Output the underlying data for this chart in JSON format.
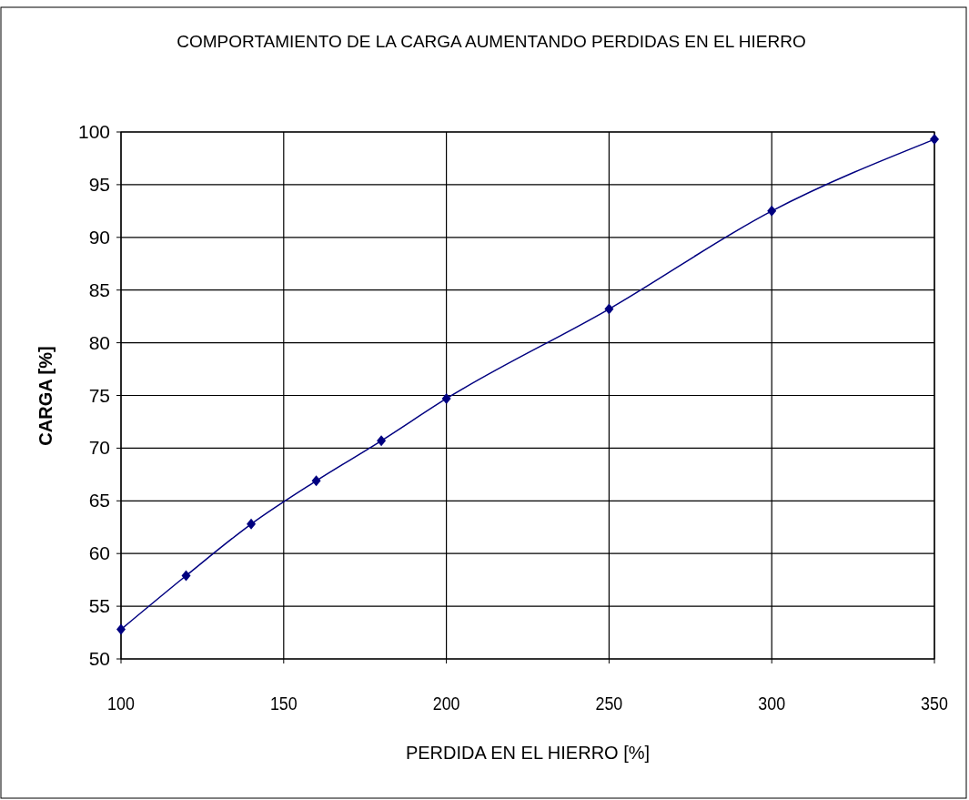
{
  "chart_data": {
    "type": "line",
    "title": "COMPORTAMIENTO DE LA CARGA AUMENTANDO PERDIDAS EN EL HIERRO",
    "xlabel": "PERDIDA EN EL HIERRO [%]",
    "ylabel": "CARGA [%]",
    "x": [
      100,
      120,
      140,
      160,
      180,
      200,
      250,
      300,
      350
    ],
    "series": [
      {
        "color": "#000080",
        "values": [
          52.8,
          57.9,
          62.8,
          66.9,
          70.7,
          74.7,
          83.2,
          92.5,
          99.3
        ]
      }
    ],
    "xlim": [
      100,
      350
    ],
    "xticks": [
      100,
      150,
      200,
      250,
      300,
      350
    ],
    "ylim": [
      50,
      100
    ],
    "yticks": [
      50,
      55,
      60,
      65,
      70,
      75,
      80,
      85,
      90,
      95,
      100
    ],
    "grid": true,
    "marker": "diamond",
    "line_style": "solid"
  }
}
